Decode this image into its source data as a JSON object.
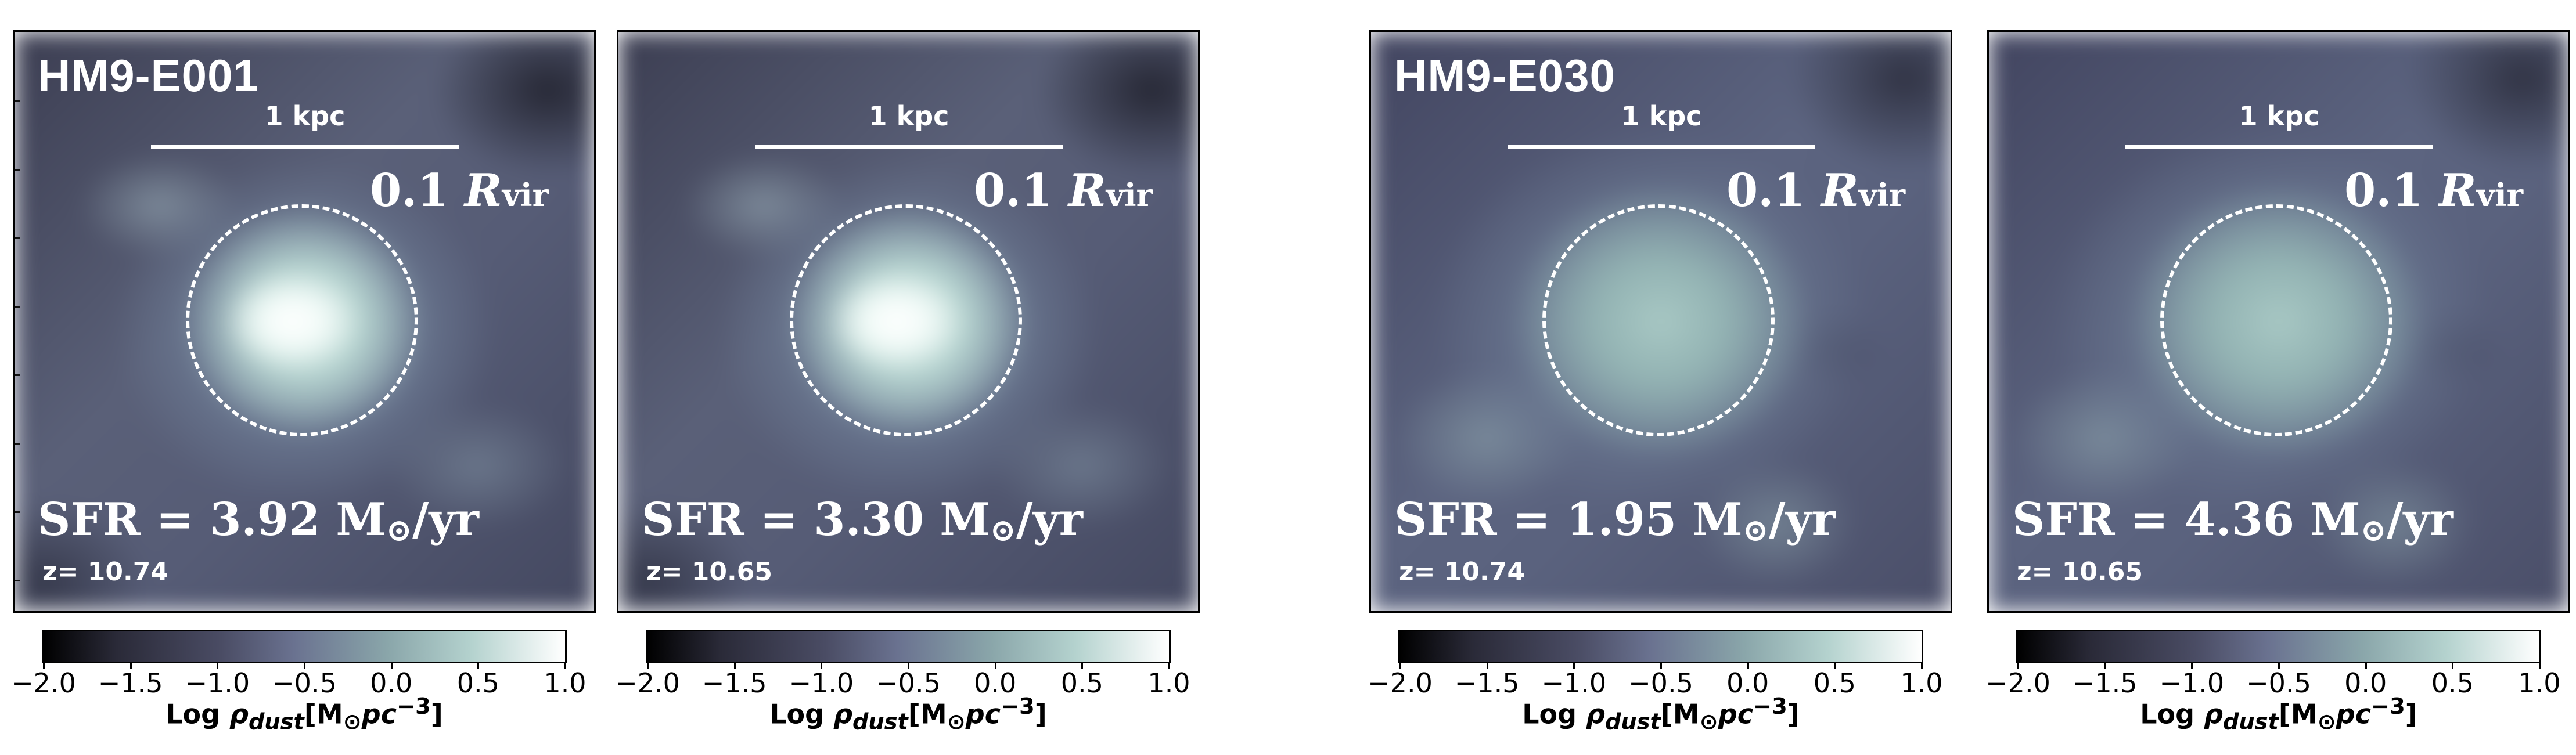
{
  "panels": [
    {
      "name": "HM9-E001",
      "scale_label": "1 kpc",
      "rvir_coef": "0.1",
      "rvir_symbol": "R",
      "rvir_sub": "vir",
      "sfr_text": "SFR = 3.92 M",
      "sfr_unit": "/yr",
      "sun_symbol": "⊙",
      "redshift": "z= 10.74",
      "core": "bright"
    },
    {
      "name": "",
      "scale_label": "1 kpc",
      "rvir_coef": "0.1",
      "rvir_symbol": "R",
      "rvir_sub": "vir",
      "sfr_text": "SFR = 3.30 M",
      "sfr_unit": "/yr",
      "sun_symbol": "⊙",
      "redshift": "z= 10.65",
      "core": "bright"
    },
    {
      "name": "HM9-E030",
      "scale_label": "1 kpc",
      "rvir_coef": "0.1",
      "rvir_symbol": "R",
      "rvir_sub": "vir",
      "sfr_text": "SFR = 1.95 M",
      "sfr_unit": "/yr",
      "sun_symbol": "⊙",
      "redshift": "z= 10.74",
      "core": "diffuse"
    },
    {
      "name": "",
      "scale_label": "1 kpc",
      "rvir_coef": "0.1",
      "rvir_symbol": "R",
      "rvir_sub": "vir",
      "sfr_text": "SFR = 4.36 M",
      "sfr_unit": "/yr",
      "sun_symbol": "⊙",
      "redshift": "z= 10.65",
      "core": "diffuse"
    }
  ],
  "colorbar": {
    "ticks": [
      "−2.0",
      "−1.5",
      "−1.0",
      "−0.5",
      "0.0",
      "0.5",
      "1.0"
    ],
    "tick_values": [
      -2.0,
      -1.5,
      -1.0,
      -0.5,
      0.0,
      0.5,
      1.0
    ],
    "range": [
      -2.0,
      1.0
    ],
    "label_prefix": "Log ",
    "label_symbol": "ρ",
    "label_sub": "dust",
    "label_unit_open": "[M",
    "label_unit_sun": "⊙",
    "label_unit_rest": "pc",
    "label_unit_exp": "−3",
    "label_unit_close": "]",
    "colors": [
      "#000000",
      "#4a4c64",
      "#8aa6aa",
      "#ffffff"
    ]
  }
}
